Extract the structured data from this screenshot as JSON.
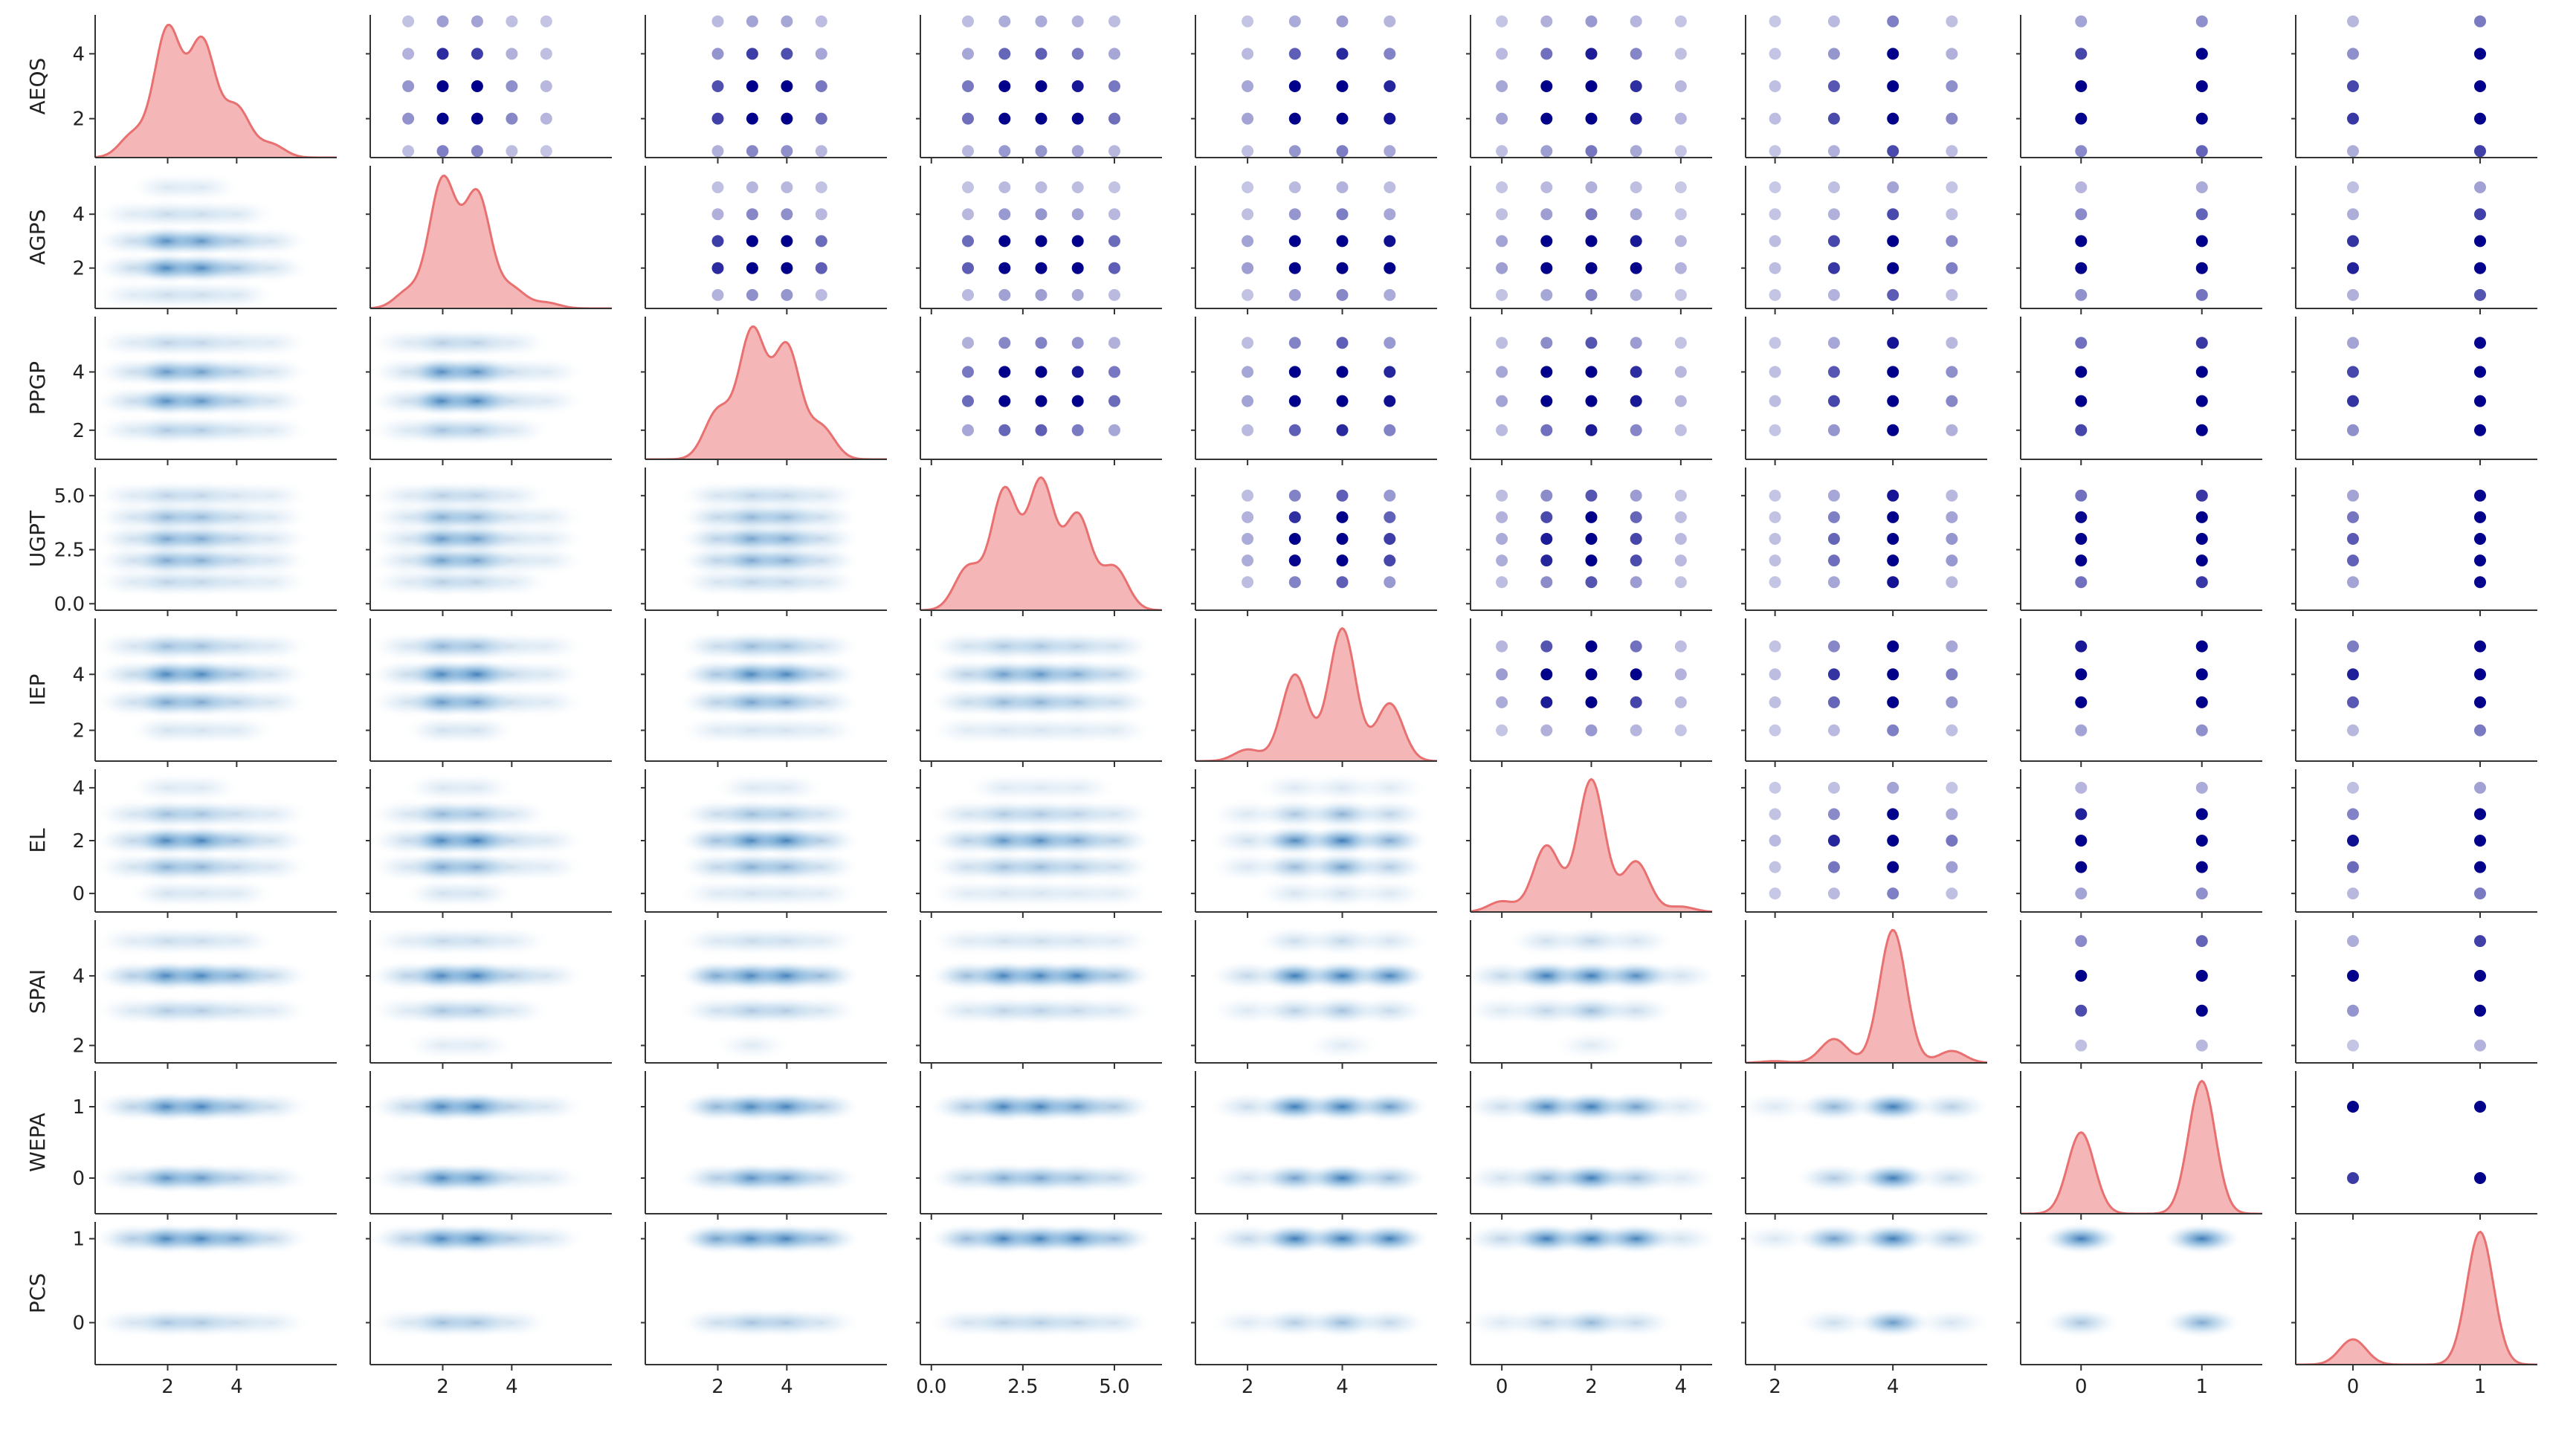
{
  "chart_data": {
    "type": "pairplot",
    "variables": [
      "AEQS",
      "AGPS",
      "PPGP",
      "UGPT",
      "IEP",
      "EL",
      "SPAI",
      "WEPA",
      "PCS"
    ],
    "diagonal": "kde",
    "lower": "kde-density",
    "upper": "scatter",
    "colors": {
      "diag_fill": "#f4b6b6",
      "diag_line": "#e87070",
      "scatter": "#00008b",
      "kde_light": "#eaf3fb",
      "kde_dark": "#2a6fb0"
    },
    "axes": {
      "AEQS": {
        "lim": [
          0.8,
          5.2
        ],
        "xlim": [
          -0.1,
          6.9
        ],
        "ticks": [
          2,
          4
        ],
        "xticks": [
          2,
          4
        ],
        "labels": [
          "2",
          "4"
        ],
        "xlabels": [
          "2",
          "4"
        ]
      },
      "AGPS": {
        "lim": [
          0.5,
          5.8
        ],
        "xlim": [
          -0.1,
          6.9
        ],
        "ticks": [
          2,
          4
        ],
        "xticks": [
          2,
          4
        ],
        "labels": [
          "2",
          "4"
        ],
        "xlabels": [
          "2",
          "4"
        ]
      },
      "PPGP": {
        "lim": [
          1.0,
          5.9
        ],
        "xlim": [
          -0.1,
          6.9
        ],
        "ticks": [
          2,
          4
        ],
        "xticks": [
          2,
          4
        ],
        "labels": [
          "2",
          "4"
        ],
        "xlabels": [
          "2",
          "4"
        ]
      },
      "UGPT": {
        "lim": [
          -0.3,
          6.3
        ],
        "xlim": [
          -0.3,
          6.3
        ],
        "ticks": [
          0,
          2.5,
          5
        ],
        "xticks": [
          0,
          2.5,
          5
        ],
        "labels": [
          "0.0",
          "2.5",
          "5.0"
        ],
        "xlabels": [
          "0.0",
          "2.5",
          "5.0"
        ]
      },
      "IEP": {
        "lim": [
          0.9,
          6.0
        ],
        "xlim": [
          0.9,
          6.0
        ],
        "ticks": [
          2,
          4
        ],
        "xticks": [
          2,
          4
        ],
        "labels": [
          "2",
          "4"
        ],
        "xlabels": [
          "2",
          "4"
        ]
      },
      "EL": {
        "lim": [
          -0.7,
          4.7
        ],
        "xlim": [
          -0.7,
          4.7
        ],
        "ticks": [
          0,
          2,
          4
        ],
        "xticks": [
          0,
          2,
          4
        ],
        "labels": [
          "0",
          "2",
          "4"
        ],
        "xlabels": [
          "0",
          "2",
          "4"
        ]
      },
      "SPAI": {
        "lim": [
          1.5,
          5.6
        ],
        "xlim": [
          1.5,
          5.6
        ],
        "ticks": [
          2,
          4
        ],
        "xticks": [
          2,
          4
        ],
        "labels": [
          "2",
          "4"
        ],
        "xlabels": [
          "2",
          "4"
        ]
      },
      "WEPA": {
        "lim": [
          -0.5,
          1.5
        ],
        "xlim": [
          -0.5,
          1.5
        ],
        "ticks": [
          0,
          1
        ],
        "xticks": [
          0,
          1
        ],
        "labels": [
          "0",
          "1"
        ],
        "xlabels": [
          "0",
          "1"
        ]
      },
      "PCS": {
        "lim": [
          -0.5,
          1.2
        ],
        "xlim": [
          -0.45,
          1.45
        ],
        "ticks": [
          0,
          1
        ],
        "xticks": [
          0,
          1
        ],
        "labels": [
          "0",
          "1"
        ],
        "xlabels": [
          "0",
          "1"
        ]
      }
    },
    "distributions": {
      "AEQS": {
        "values": [
          1,
          2,
          3,
          4,
          5
        ],
        "weights": [
          0.07,
          0.39,
          0.35,
          0.15,
          0.04
        ]
      },
      "AGPS": {
        "values": [
          1,
          2,
          3,
          4,
          5
        ],
        "weights": [
          0.06,
          0.45,
          0.4,
          0.07,
          0.02
        ]
      },
      "PPGP": {
        "values": [
          2,
          3,
          4,
          5
        ],
        "weights": [
          0.15,
          0.4,
          0.35,
          0.1
        ]
      },
      "UGPT": {
        "values": [
          1,
          2,
          3,
          4,
          5
        ],
        "weights": [
          0.1,
          0.28,
          0.3,
          0.22,
          0.1
        ]
      },
      "IEP": {
        "values": [
          2,
          3,
          4,
          5
        ],
        "weights": [
          0.04,
          0.3,
          0.46,
          0.2
        ]
      },
      "EL": {
        "values": [
          0,
          1,
          2,
          3,
          4
        ],
        "weights": [
          0.04,
          0.25,
          0.5,
          0.19,
          0.02
        ]
      },
      "SPAI": {
        "values": [
          2,
          3,
          4,
          5
        ],
        "weights": [
          0.01,
          0.14,
          0.78,
          0.07
        ]
      },
      "WEPA": {
        "values": [
          0,
          1
        ],
        "weights": [
          0.38,
          0.62
        ]
      },
      "PCS": {
        "values": [
          0,
          1
        ],
        "weights": [
          0.16,
          0.84
        ]
      }
    }
  }
}
